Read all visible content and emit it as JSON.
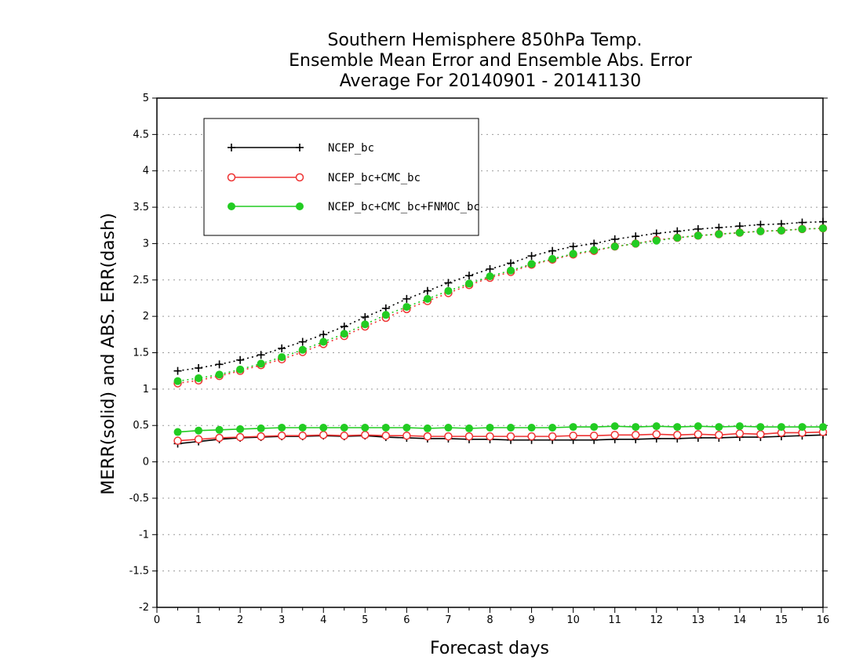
{
  "chart_data": {
    "type": "line",
    "title_lines": [
      "Southern Hemisphere 850hPa Temp.",
      "Ensemble Mean Error and Ensemble Abs. Error",
      "Average For 20140901 - 20141130"
    ],
    "xlabel": "Forecast days",
    "ylabel": "MERR(solid) and ABS. ERR(dash)",
    "xlim": [
      0,
      16
    ],
    "ylim": [
      -2,
      5
    ],
    "xticks": [
      "0",
      "1",
      "2",
      "3",
      "4",
      "5",
      "6",
      "7",
      "8",
      "9",
      "10",
      "11",
      "12",
      "13",
      "14",
      "15",
      "16"
    ],
    "yticks": [
      "-2",
      "-1.5",
      "-1",
      "-0.5",
      "0",
      "0.5",
      "1",
      "1.5",
      "2",
      "2.5",
      "3",
      "3.5",
      "4",
      "4.5",
      "5"
    ],
    "grid": "horizontal-dotted",
    "legend_position": "top-left",
    "x": [
      0.5,
      1,
      1.5,
      2,
      2.5,
      3,
      3.5,
      4,
      4.5,
      5,
      5.5,
      6,
      6.5,
      7,
      7.5,
      8,
      8.5,
      9,
      9.5,
      10,
      10.5,
      11,
      11.5,
      12,
      12.5,
      13,
      13.5,
      14,
      14.5,
      15,
      15.5,
      16
    ],
    "series": [
      {
        "name": "NCEP_bc",
        "color": "#000000",
        "marker": "plus",
        "merr": [
          0.25,
          0.28,
          0.31,
          0.33,
          0.34,
          0.35,
          0.35,
          0.36,
          0.35,
          0.36,
          0.34,
          0.33,
          0.32,
          0.32,
          0.31,
          0.31,
          0.3,
          0.3,
          0.3,
          0.3,
          0.3,
          0.31,
          0.31,
          0.32,
          0.32,
          0.33,
          0.33,
          0.34,
          0.34,
          0.35,
          0.36,
          0.37
        ],
        "abs_err": [
          1.25,
          1.29,
          1.34,
          1.4,
          1.47,
          1.56,
          1.65,
          1.75,
          1.86,
          1.99,
          2.11,
          2.24,
          2.35,
          2.46,
          2.56,
          2.65,
          2.73,
          2.83,
          2.9,
          2.96,
          3.0,
          3.06,
          3.1,
          3.14,
          3.17,
          3.2,
          3.22,
          3.24,
          3.26,
          3.27,
          3.29,
          3.3
        ]
      },
      {
        "name": "NCEP_bc+CMC_bc",
        "color": "#ee3333",
        "marker": "open-circle",
        "merr": [
          0.29,
          0.31,
          0.33,
          0.34,
          0.35,
          0.36,
          0.36,
          0.37,
          0.36,
          0.37,
          0.36,
          0.36,
          0.35,
          0.35,
          0.35,
          0.35,
          0.35,
          0.35,
          0.35,
          0.36,
          0.36,
          0.37,
          0.37,
          0.38,
          0.37,
          0.38,
          0.37,
          0.39,
          0.38,
          0.4,
          0.4,
          0.41
        ],
        "abs_err": [
          1.08,
          1.12,
          1.18,
          1.25,
          1.33,
          1.41,
          1.51,
          1.62,
          1.73,
          1.86,
          1.98,
          2.1,
          2.21,
          2.32,
          2.43,
          2.53,
          2.61,
          2.71,
          2.78,
          2.85,
          2.9,
          2.96,
          3.0,
          3.05,
          3.08,
          3.11,
          3.13,
          3.15,
          3.17,
          3.18,
          3.2,
          3.21
        ]
      },
      {
        "name": "NCEP_bc+CMC_bc+FNMOC_bc",
        "color": "#22cc22",
        "marker": "filled-circle",
        "merr": [
          0.41,
          0.43,
          0.44,
          0.45,
          0.46,
          0.47,
          0.47,
          0.47,
          0.47,
          0.47,
          0.47,
          0.47,
          0.46,
          0.47,
          0.46,
          0.47,
          0.47,
          0.47,
          0.47,
          0.48,
          0.48,
          0.49,
          0.48,
          0.49,
          0.48,
          0.49,
          0.48,
          0.49,
          0.48,
          0.48,
          0.48,
          0.48
        ],
        "abs_err": [
          1.11,
          1.15,
          1.2,
          1.27,
          1.35,
          1.44,
          1.54,
          1.65,
          1.76,
          1.89,
          2.02,
          2.13,
          2.24,
          2.35,
          2.45,
          2.55,
          2.63,
          2.72,
          2.79,
          2.86,
          2.91,
          2.96,
          3.0,
          3.04,
          3.08,
          3.11,
          3.13,
          3.15,
          3.17,
          3.18,
          3.2,
          3.21
        ]
      }
    ]
  }
}
